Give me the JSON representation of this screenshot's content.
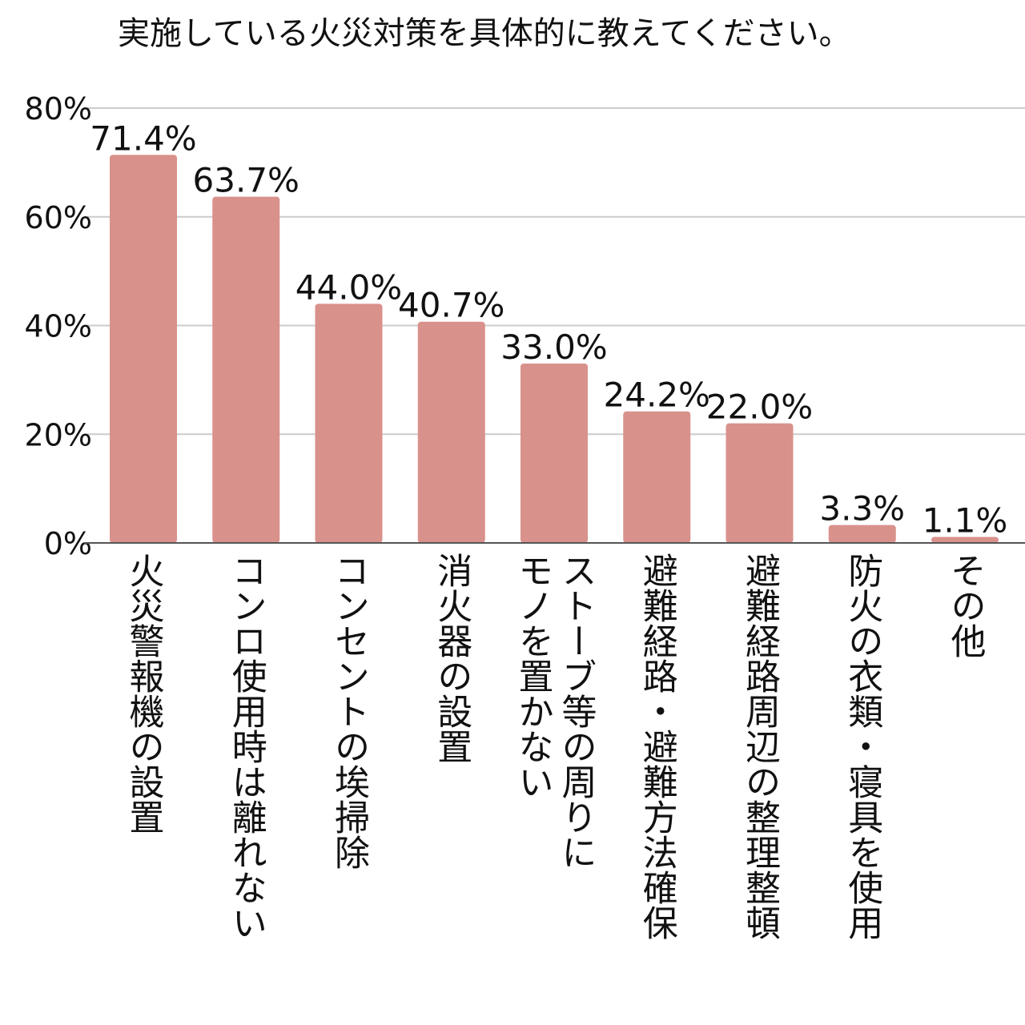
{
  "chart_data": {
    "type": "bar",
    "title": "実施している火災対策を具体的に教えてください。",
    "categories": [
      "火災警報機の設置",
      "コンロ使用時は離れない",
      "コンセントの埃掃除",
      "消火器の設置",
      "ストーブ等の周りにモノを置かない",
      "避難経路・避難方法確保",
      "避難経路周辺の整理整頓",
      "防火の衣類・寝具を使用",
      "その他"
    ],
    "category_lines": [
      [
        "火災警報機の設置"
      ],
      [
        "コンロ使用時は離れない"
      ],
      [
        "コンセントの埃掃除"
      ],
      [
        "消火器の設置"
      ],
      [
        "ストーブ等の周りに",
        "モノを置かない"
      ],
      [
        "避難経路・避難方法確保"
      ],
      [
        "避難経路周辺の整理整頓"
      ],
      [
        "防火の衣類・寝具を使用"
      ],
      [
        "その他"
      ]
    ],
    "values": [
      71.4,
      63.7,
      44.0,
      40.7,
      33.0,
      24.2,
      22.0,
      3.3,
      1.1
    ],
    "value_labels": [
      "71.4%",
      "63.7%",
      "44.0%",
      "40.7%",
      "33.0%",
      "24.2%",
      "22.0%",
      "3.3%",
      "1.1%"
    ],
    "y_ticks": [
      0,
      20,
      40,
      60,
      80
    ],
    "y_tick_labels": [
      "0%",
      "20%",
      "40%",
      "60%",
      "80%"
    ],
    "ylim": [
      0,
      80
    ],
    "grid": true,
    "legend": "none",
    "bar_color": "#d9918c"
  }
}
